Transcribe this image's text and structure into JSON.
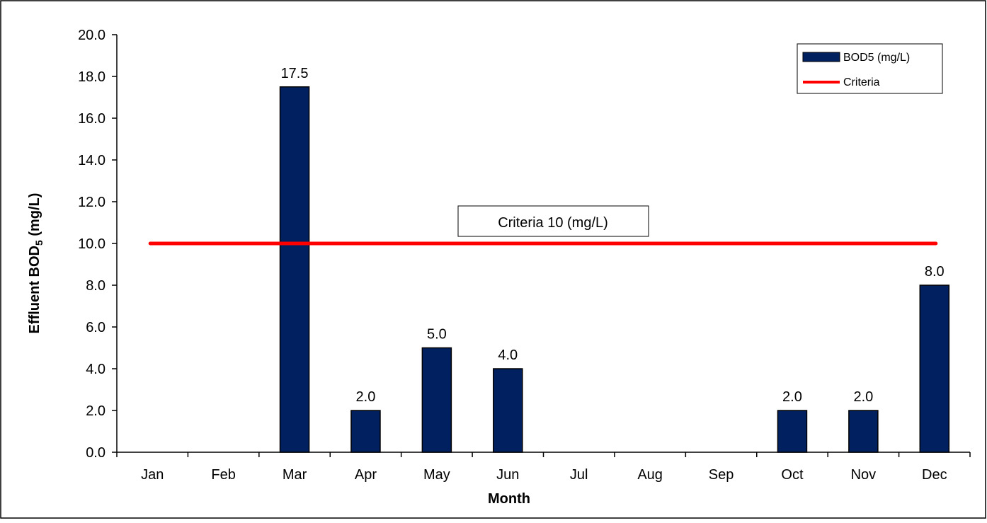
{
  "chart_data": {
    "type": "bar",
    "categories": [
      "Jan",
      "Feb",
      "Mar",
      "Apr",
      "May",
      "Jun",
      "Jul",
      "Aug",
      "Sep",
      "Oct",
      "Nov",
      "Dec"
    ],
    "values": [
      null,
      null,
      17.5,
      2.0,
      5.0,
      4.0,
      null,
      null,
      null,
      2.0,
      2.0,
      8.0
    ],
    "data_labels": [
      "",
      "",
      "17.5",
      "2.0",
      "5.0",
      "4.0",
      "",
      "",
      "",
      "2.0",
      "2.0",
      "8.0"
    ],
    "series": [
      {
        "name": "BOD5 (mg/L)",
        "type": "bar",
        "values": [
          null,
          null,
          17.5,
          2.0,
          5.0,
          4.0,
          null,
          null,
          null,
          2.0,
          2.0,
          8.0
        ]
      },
      {
        "name": "Criteria",
        "type": "line",
        "values": [
          10,
          10,
          10,
          10,
          10,
          10,
          10,
          10,
          10,
          10,
          10,
          10
        ]
      }
    ],
    "ylim": [
      0,
      20
    ],
    "yticks": [
      "0.0",
      "2.0",
      "4.0",
      "6.0",
      "8.0",
      "10.0",
      "12.0",
      "14.0",
      "16.0",
      "18.0",
      "20.0"
    ],
    "xlabel": "Month",
    "ylabel_main": "Effluent BOD",
    "ylabel_sub": "5",
    "ylabel_unit": " (mg/L)",
    "annotation": "Criteria 10 (mg/L)",
    "criteria_value": 10,
    "legend_position": "top-right",
    "grid": false,
    "colors": {
      "bar": "#002060",
      "bar_edge": "#000000",
      "criteria": "#ff0000",
      "axis": "#000000"
    }
  }
}
